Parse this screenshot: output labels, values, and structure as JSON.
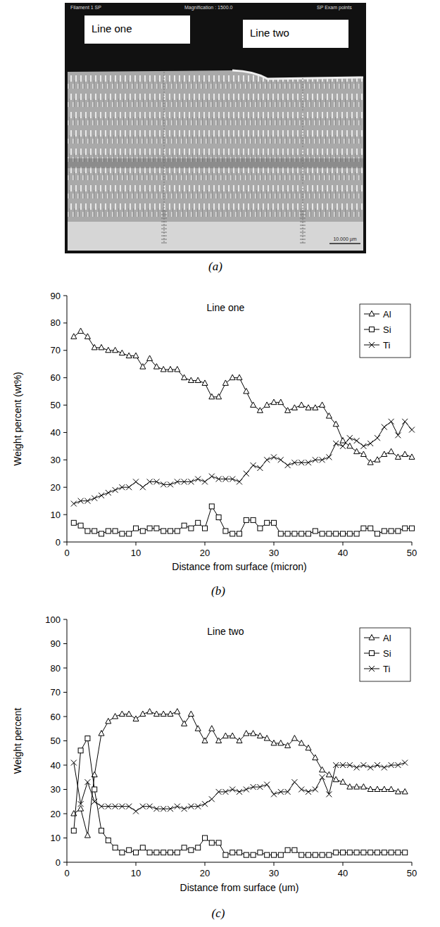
{
  "micrograph": {
    "header": [
      "Filament 1 SP",
      "Magnification : 1500.0",
      "SP Exam points"
    ],
    "labels": [
      "Line one",
      "Line two"
    ],
    "scale_bar": "10.000 µm",
    "caption": "(a)"
  },
  "chart_data": [
    {
      "type": "line",
      "title": "Line one",
      "caption": "(b)",
      "x_label": "Distance from surface (micron)",
      "y_label": "Weight percent (wt%)",
      "x": [
        1,
        2,
        3,
        4,
        5,
        6,
        7,
        8,
        9,
        10,
        11,
        12,
        13,
        14,
        15,
        16,
        17,
        18,
        19,
        20,
        21,
        22,
        23,
        24,
        25,
        26,
        27,
        28,
        29,
        30,
        31,
        32,
        33,
        34,
        35,
        36,
        37,
        38,
        39,
        40,
        41,
        42,
        43,
        44,
        45,
        46,
        47,
        48,
        49,
        50
      ],
      "series": [
        {
          "name": "Al",
          "color": "#000000",
          "marker": "triangle",
          "line_style": "solid",
          "values": [
            75,
            77,
            75,
            71,
            71,
            70,
            70,
            69,
            68,
            68,
            64,
            67,
            64,
            63,
            63,
            63,
            60,
            59,
            59,
            58,
            53,
            53,
            58,
            60,
            60,
            55,
            50,
            48,
            50,
            51,
            51,
            48,
            49,
            50,
            49,
            49,
            50,
            46,
            43,
            37,
            35,
            33,
            32,
            29,
            30,
            32,
            33,
            31,
            32,
            31
          ]
        },
        {
          "name": "Si",
          "color": "#000000",
          "marker": "square",
          "line_style": "solid",
          "values": [
            7,
            6,
            4,
            4,
            3,
            4,
            4,
            3,
            3,
            5,
            4,
            5,
            5,
            4,
            4,
            4,
            6,
            5,
            7,
            5,
            13,
            9,
            4,
            3,
            3,
            8,
            8,
            5,
            7,
            7,
            3,
            3,
            3,
            3,
            3,
            4,
            3,
            3,
            3,
            3,
            3,
            3,
            5,
            5,
            3,
            4,
            4,
            4,
            5,
            5
          ]
        },
        {
          "name": "Ti",
          "color": "#000000",
          "marker": "x",
          "line_style": "solid",
          "values": [
            14,
            15,
            15,
            16,
            17,
            18,
            19,
            20,
            20,
            22,
            20,
            22,
            22,
            21,
            21,
            22,
            22,
            22,
            23,
            22,
            24,
            23,
            23,
            23,
            22,
            25,
            28,
            27,
            30,
            31,
            30,
            28,
            29,
            29,
            29,
            30,
            30,
            31,
            36,
            35,
            38,
            37,
            35,
            36,
            38,
            42,
            44,
            39,
            44,
            41
          ]
        }
      ],
      "xlim": [
        0,
        50
      ],
      "xticks": [
        0,
        10,
        20,
        30,
        40,
        50
      ],
      "ylim": [
        0,
        90
      ],
      "yticks": [
        0,
        10,
        20,
        30,
        40,
        50,
        60,
        70,
        80,
        90
      ],
      "grid": false,
      "legend": "upper right"
    },
    {
      "type": "line",
      "title": "Line two",
      "caption": "(c)",
      "x_label": "Distance from surface (um)",
      "y_label": "Weight percent",
      "x": [
        1,
        2,
        3,
        4,
        5,
        6,
        7,
        8,
        9,
        10,
        11,
        12,
        13,
        14,
        15,
        16,
        17,
        18,
        19,
        20,
        21,
        22,
        23,
        24,
        25,
        26,
        27,
        28,
        29,
        30,
        31,
        32,
        33,
        34,
        35,
        36,
        37,
        38,
        39,
        40,
        41,
        42,
        43,
        44,
        45,
        46,
        47,
        48,
        49
      ],
      "series": [
        {
          "name": "Al",
          "color": "#000000",
          "marker": "triangle",
          "line_style": "solid",
          "values": [
            20,
            22,
            11,
            36,
            53,
            58,
            60,
            61,
            61,
            59,
            61,
            62,
            61,
            61,
            61,
            62,
            57,
            61,
            55,
            50,
            55,
            50,
            52,
            52,
            50,
            53,
            53,
            52,
            51,
            49,
            49,
            48,
            51,
            49,
            47,
            43,
            38,
            36,
            34,
            33,
            31,
            31,
            31,
            30,
            30,
            30,
            30,
            29,
            29
          ]
        },
        {
          "name": "Si",
          "color": "#000000",
          "marker": "square",
          "line_style": "solid",
          "values": [
            13,
            46,
            51,
            30,
            13,
            9,
            6,
            4,
            5,
            4,
            6,
            4,
            4,
            4,
            4,
            4,
            6,
            5,
            6,
            10,
            8,
            8,
            3,
            4,
            4,
            3,
            3,
            4,
            3,
            3,
            3,
            5,
            5,
            3,
            3,
            3,
            3,
            3,
            4,
            4,
            4,
            4,
            4,
            4,
            4,
            4,
            4,
            4,
            4
          ]
        },
        {
          "name": "Ti",
          "color": "#000000",
          "marker": "x",
          "line_style": "solid",
          "values": [
            41,
            24,
            33,
            25,
            23,
            23,
            23,
            23,
            23,
            21,
            23,
            23,
            22,
            22,
            22,
            23,
            22,
            23,
            23,
            24,
            26,
            29,
            29,
            30,
            29,
            30,
            31,
            31,
            32,
            28,
            29,
            29,
            33,
            30,
            29,
            30,
            35,
            28,
            40,
            40,
            40,
            39,
            40,
            39,
            40,
            39,
            40,
            40,
            41
          ]
        }
      ],
      "xlim": [
        0,
        50
      ],
      "xticks": [
        0,
        10,
        20,
        30,
        40,
        50
      ],
      "ylim": [
        0,
        100
      ],
      "yticks": [
        0,
        10,
        20,
        30,
        40,
        50,
        60,
        70,
        80,
        90,
        100
      ],
      "grid": false,
      "legend": "upper right"
    }
  ]
}
